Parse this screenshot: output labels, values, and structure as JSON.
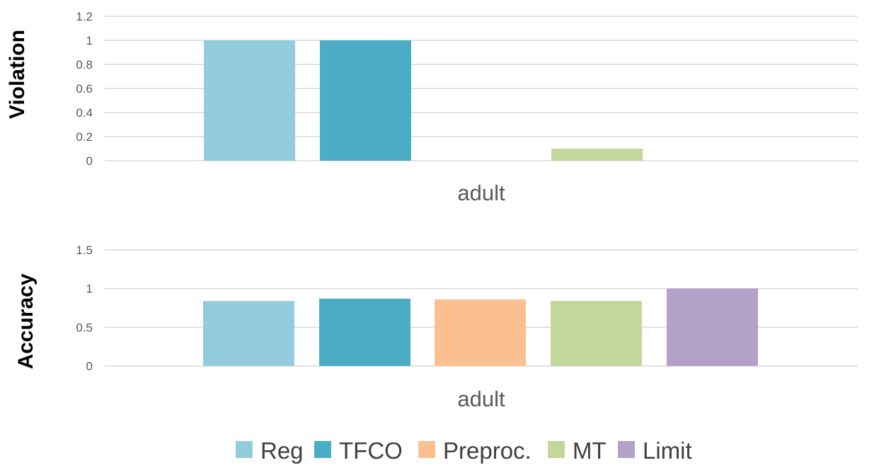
{
  "chart_data": [
    {
      "type": "bar",
      "categories": [
        "adult"
      ],
      "series": [
        {
          "name": "Reg",
          "values": [
            1.0
          ]
        },
        {
          "name": "TFCO",
          "values": [
            1.0
          ]
        },
        {
          "name": "Preproc.",
          "values": [
            0
          ]
        },
        {
          "name": "MT",
          "values": [
            0.1
          ]
        },
        {
          "name": "Limit",
          "values": [
            0
          ]
        }
      ],
      "ylabel": "Violation",
      "xlabel": "",
      "ylim": [
        0,
        1.2
      ],
      "yticks": [
        "0",
        "0.2",
        "0.4",
        "0.6",
        "0.8",
        "1",
        "1.2"
      ],
      "grid": true
    },
    {
      "type": "bar",
      "categories": [
        "adult"
      ],
      "series": [
        {
          "name": "Reg",
          "values": [
            0.84
          ]
        },
        {
          "name": "TFCO",
          "values": [
            0.87
          ]
        },
        {
          "name": "Preproc.",
          "values": [
            0.86
          ]
        },
        {
          "name": "MT",
          "values": [
            0.84
          ]
        },
        {
          "name": "Limit",
          "values": [
            1.0
          ]
        }
      ],
      "ylabel": "Accuracy",
      "xlabel": "",
      "ylim": [
        0,
        1.5
      ],
      "yticks": [
        "0",
        "0.5",
        "1",
        "1.5"
      ],
      "grid": true
    }
  ],
  "legend": {
    "position": "bottom",
    "items": [
      {
        "label": "Reg",
        "color": "#93cddd"
      },
      {
        "label": "TFCO",
        "color": "#4bacc6"
      },
      {
        "label": "Preproc.",
        "color": "#fac090"
      },
      {
        "label": "MT",
        "color": "#c3d69b"
      },
      {
        "label": "Limit",
        "color": "#b3a2c7"
      }
    ]
  }
}
